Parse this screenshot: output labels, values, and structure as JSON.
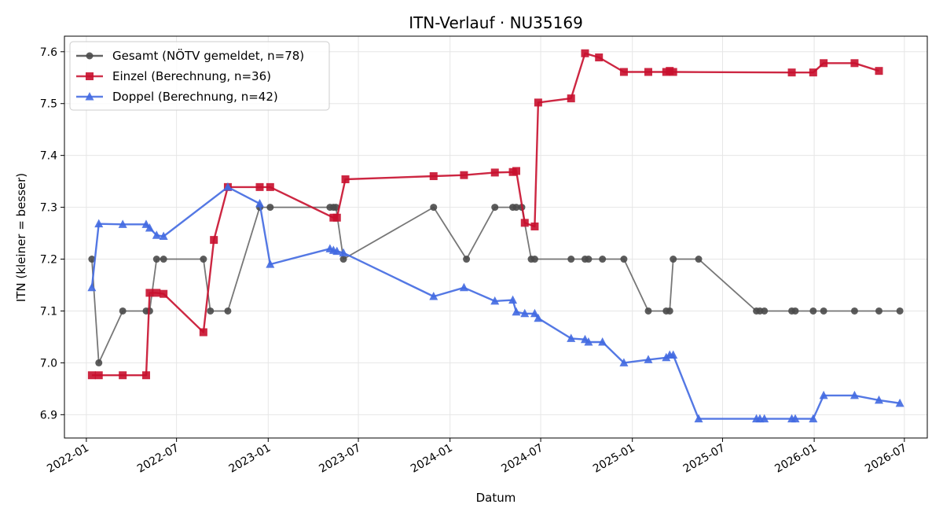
{
  "chart_data": {
    "type": "line",
    "title": "ITN-Verlauf · NU35169",
    "xlabel": "Datum",
    "ylabel": "ITN  (kleiner = besser)",
    "x_axis": "date",
    "xlim": [
      "2021-11-18",
      "2026-08-16"
    ],
    "ylim": [
      6.855,
      7.63
    ],
    "x_ticks": [
      "2022-01",
      "2022-07",
      "2023-01",
      "2023-07",
      "2024-01",
      "2024-07",
      "2025-01",
      "2025-07",
      "2026-01",
      "2026-07"
    ],
    "y_ticks": [
      "6.9",
      "7.0",
      "7.1",
      "7.2",
      "7.3",
      "7.4",
      "7.5",
      "7.6"
    ],
    "grid": true,
    "legend_position": "top-left",
    "series": [
      {
        "name": "Gesamt (NÖTV gemeldet, n=78)",
        "color": "#4a4a4a",
        "marker": "circle",
        "points": [
          [
            "2022-01-12",
            7.2
          ],
          [
            "2022-01-26",
            7.0
          ],
          [
            "2022-03-15",
            7.1
          ],
          [
            "2022-05-01",
            7.1
          ],
          [
            "2022-05-08",
            7.1
          ],
          [
            "2022-05-22",
            7.2
          ],
          [
            "2022-06-05",
            7.2
          ],
          [
            "2022-08-24",
            7.2
          ],
          [
            "2022-09-07",
            7.1
          ],
          [
            "2022-10-12",
            7.1
          ],
          [
            "2022-12-15",
            7.3
          ],
          [
            "2023-01-05",
            7.3
          ],
          [
            "2023-05-05",
            7.3
          ],
          [
            "2023-05-12",
            7.3
          ],
          [
            "2023-05-17",
            7.3
          ],
          [
            "2023-06-01",
            7.2
          ],
          [
            "2023-11-29",
            7.3
          ],
          [
            "2024-02-03",
            7.2
          ],
          [
            "2024-03-31",
            7.3
          ],
          [
            "2024-05-06",
            7.3
          ],
          [
            "2024-05-13",
            7.3
          ],
          [
            "2024-05-24",
            7.3
          ],
          [
            "2024-06-12",
            7.2
          ],
          [
            "2024-06-19",
            7.2
          ],
          [
            "2024-08-31",
            7.2
          ],
          [
            "2024-09-28",
            7.2
          ],
          [
            "2024-10-05",
            7.2
          ],
          [
            "2024-11-02",
            7.2
          ],
          [
            "2024-12-15",
            7.2
          ],
          [
            "2025-02-02",
            7.1
          ],
          [
            "2025-03-10",
            7.1
          ],
          [
            "2025-03-17",
            7.1
          ],
          [
            "2025-03-24",
            7.2
          ],
          [
            "2025-05-14",
            7.2
          ],
          [
            "2025-09-07",
            7.1
          ],
          [
            "2025-09-14",
            7.1
          ],
          [
            "2025-09-23",
            7.1
          ],
          [
            "2025-11-17",
            7.1
          ],
          [
            "2025-11-24",
            7.1
          ],
          [
            "2025-12-30",
            7.1
          ],
          [
            "2026-01-20",
            7.1
          ],
          [
            "2026-03-23",
            7.1
          ],
          [
            "2026-05-11",
            7.1
          ],
          [
            "2026-06-22",
            7.1
          ]
        ]
      },
      {
        "name": "Einzel (Berechnung, n=36)",
        "color": "#c8102e",
        "marker": "square",
        "points": [
          [
            "2022-01-12",
            6.976
          ],
          [
            "2022-01-26",
            6.976
          ],
          [
            "2022-03-15",
            6.976
          ],
          [
            "2022-05-01",
            6.976
          ],
          [
            "2022-05-08",
            7.135
          ],
          [
            "2022-05-22",
            7.135
          ],
          [
            "2022-06-05",
            7.133
          ],
          [
            "2022-08-24",
            7.059
          ],
          [
            "2022-09-14",
            7.237
          ],
          [
            "2022-10-12",
            7.339
          ],
          [
            "2022-12-15",
            7.339
          ],
          [
            "2023-01-05",
            7.339
          ],
          [
            "2023-05-12",
            7.28
          ],
          [
            "2023-05-19",
            7.28
          ],
          [
            "2023-06-05",
            7.354
          ],
          [
            "2023-11-29",
            7.36
          ],
          [
            "2024-01-29",
            7.362
          ],
          [
            "2024-03-31",
            7.367
          ],
          [
            "2024-05-06",
            7.368
          ],
          [
            "2024-05-13",
            7.37
          ],
          [
            "2024-05-30",
            7.27
          ],
          [
            "2024-06-19",
            7.263
          ],
          [
            "2024-06-26",
            7.502
          ],
          [
            "2024-08-31",
            7.51
          ],
          [
            "2024-09-28",
            7.597
          ],
          [
            "2024-10-26",
            7.589
          ],
          [
            "2024-12-15",
            7.561
          ],
          [
            "2025-02-02",
            7.561
          ],
          [
            "2025-03-10",
            7.561
          ],
          [
            "2025-03-17",
            7.563
          ],
          [
            "2025-03-24",
            7.561
          ],
          [
            "2025-11-17",
            7.56
          ],
          [
            "2025-12-30",
            7.56
          ],
          [
            "2026-01-20",
            7.578
          ],
          [
            "2026-03-23",
            7.578
          ],
          [
            "2026-05-11",
            7.563
          ]
        ]
      },
      {
        "name": "Doppel (Berechnung, n=42)",
        "color": "#4169e1",
        "marker": "triangle",
        "points": [
          [
            "2022-01-12",
            7.145
          ],
          [
            "2022-01-26",
            7.268
          ],
          [
            "2022-03-15",
            7.267
          ],
          [
            "2022-05-01",
            7.267
          ],
          [
            "2022-05-08",
            7.26
          ],
          [
            "2022-05-22",
            7.246
          ],
          [
            "2022-06-05",
            7.244
          ],
          [
            "2022-10-12",
            7.339
          ],
          [
            "2022-12-15",
            7.307
          ],
          [
            "2023-01-05",
            7.19
          ],
          [
            "2023-05-05",
            7.22
          ],
          [
            "2023-05-12",
            7.217
          ],
          [
            "2023-05-19",
            7.215
          ],
          [
            "2023-06-01",
            7.212
          ],
          [
            "2023-11-29",
            7.128
          ],
          [
            "2024-01-29",
            7.145
          ],
          [
            "2024-03-31",
            7.119
          ],
          [
            "2024-05-06",
            7.121
          ],
          [
            "2024-05-13",
            7.098
          ],
          [
            "2024-05-30",
            7.095
          ],
          [
            "2024-06-19",
            7.095
          ],
          [
            "2024-06-26",
            7.086
          ],
          [
            "2024-08-31",
            7.047
          ],
          [
            "2024-09-28",
            7.045
          ],
          [
            "2024-10-05",
            7.04
          ],
          [
            "2024-11-02",
            7.04
          ],
          [
            "2024-12-15",
            7.0
          ],
          [
            "2025-02-02",
            7.006
          ],
          [
            "2025-03-10",
            7.01
          ],
          [
            "2025-03-17",
            7.015
          ],
          [
            "2025-03-24",
            7.015
          ],
          [
            "2025-05-14",
            6.892
          ],
          [
            "2025-09-07",
            6.892
          ],
          [
            "2025-09-14",
            6.892
          ],
          [
            "2025-09-23",
            6.892
          ],
          [
            "2025-11-17",
            6.892
          ],
          [
            "2025-11-24",
            6.892
          ],
          [
            "2025-12-30",
            6.892
          ],
          [
            "2026-01-20",
            6.937
          ],
          [
            "2026-03-23",
            6.937
          ],
          [
            "2026-05-11",
            6.928
          ],
          [
            "2026-06-22",
            6.922
          ]
        ]
      }
    ]
  }
}
